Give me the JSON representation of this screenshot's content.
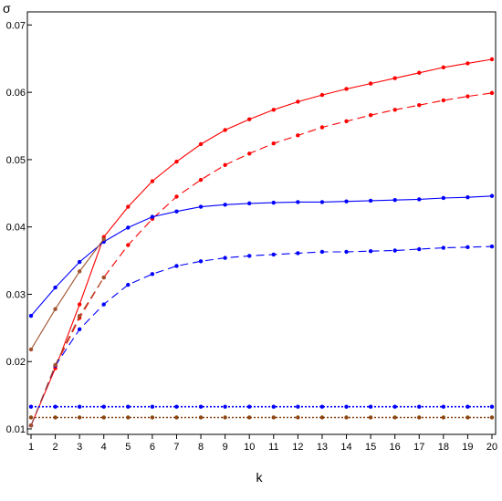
{
  "chart_data": {
    "type": "line",
    "xlabel": "k",
    "ylabel": "σ",
    "xlim": [
      1,
      20
    ],
    "ylim": [
      0.01,
      0.071
    ],
    "x_ticks": [
      1,
      2,
      3,
      4,
      5,
      6,
      7,
      8,
      9,
      10,
      11,
      12,
      13,
      14,
      15,
      16,
      17,
      18,
      19,
      20
    ],
    "y_ticks": [
      0.01,
      0.02,
      0.03,
      0.04,
      0.05,
      0.06,
      0.07
    ],
    "y_tick_labels": [
      "0.01",
      "0.02",
      "0.03",
      "0.04",
      "0.05",
      "0.06",
      "0.07"
    ],
    "grid": false,
    "legend": "none",
    "x": [
      1,
      2,
      3,
      4,
      5,
      6,
      7,
      8,
      9,
      10,
      11,
      12,
      13,
      14,
      15,
      16,
      17,
      18,
      19,
      20
    ],
    "series": [
      {
        "color": "#ff0000",
        "dash": "solid",
        "values": [
          0.0105,
          0.019,
          0.0285,
          0.0385,
          0.043,
          0.0468,
          0.0497,
          0.0523,
          0.0544,
          0.056,
          0.0574,
          0.0586,
          0.0596,
          0.0605,
          0.0613,
          0.0621,
          0.0629,
          0.0637,
          0.0643,
          0.0649
        ]
      },
      {
        "color": "#ff0000",
        "dash": "dashed",
        "values": [
          0.0105,
          0.0193,
          0.0265,
          0.0325,
          0.0373,
          0.0412,
          0.0445,
          0.047,
          0.0492,
          0.0509,
          0.0524,
          0.0536,
          0.0548,
          0.0557,
          0.0566,
          0.0574,
          0.0581,
          0.0588,
          0.0594,
          0.0599
        ]
      },
      {
        "color": "#0000ff",
        "dash": "solid",
        "values": [
          0.0268,
          0.031,
          0.0348,
          0.0378,
          0.0399,
          0.0415,
          0.0423,
          0.043,
          0.0433,
          0.0435,
          0.0436,
          0.0437,
          0.0437,
          0.0438,
          0.0439,
          0.044,
          0.0441,
          0.0443,
          0.0444,
          0.0446
        ]
      },
      {
        "color": "#0000ff",
        "dash": "dashed",
        "values": [
          0.0105,
          0.0194,
          0.0248,
          0.0285,
          0.0314,
          0.033,
          0.0342,
          0.0349,
          0.0354,
          0.0357,
          0.0359,
          0.0361,
          0.0363,
          0.0363,
          0.0364,
          0.0365,
          0.0367,
          0.0369,
          0.037,
          0.0371
        ]
      },
      {
        "color": "#a0522d",
        "dash": "solid",
        "values": [
          0.0218,
          0.0278,
          0.0334,
          0.0382,
          null,
          null,
          null,
          null,
          null,
          null,
          null,
          null,
          null,
          null,
          null,
          null,
          null,
          null,
          null,
          null
        ]
      },
      {
        "color": "#a0522d",
        "dash": "dashed",
        "values": [
          0.0105,
          0.0195,
          0.0268,
          0.0325,
          null,
          null,
          null,
          null,
          null,
          null,
          null,
          null,
          null,
          null,
          null,
          null,
          null,
          null,
          null,
          null
        ]
      },
      {
        "color": "#0000ff",
        "dash": "dotted",
        "values": [
          0.0133,
          0.0133,
          0.0133,
          0.0133,
          0.0133,
          0.0133,
          0.0133,
          0.0133,
          0.0133,
          0.0133,
          0.0133,
          0.0133,
          0.0133,
          0.0133,
          0.0133,
          0.0133,
          0.0133,
          0.0133,
          0.0133,
          0.0133
        ]
      },
      {
        "color": "#8b4513",
        "dash": "dotted",
        "values": [
          0.0117,
          0.0117,
          0.0117,
          0.0117,
          0.0117,
          0.0117,
          0.0117,
          0.0117,
          0.0117,
          0.0117,
          0.0117,
          0.0117,
          0.0117,
          0.0117,
          0.0117,
          0.0117,
          0.0117,
          0.0117,
          0.0117,
          0.0117
        ]
      }
    ]
  }
}
